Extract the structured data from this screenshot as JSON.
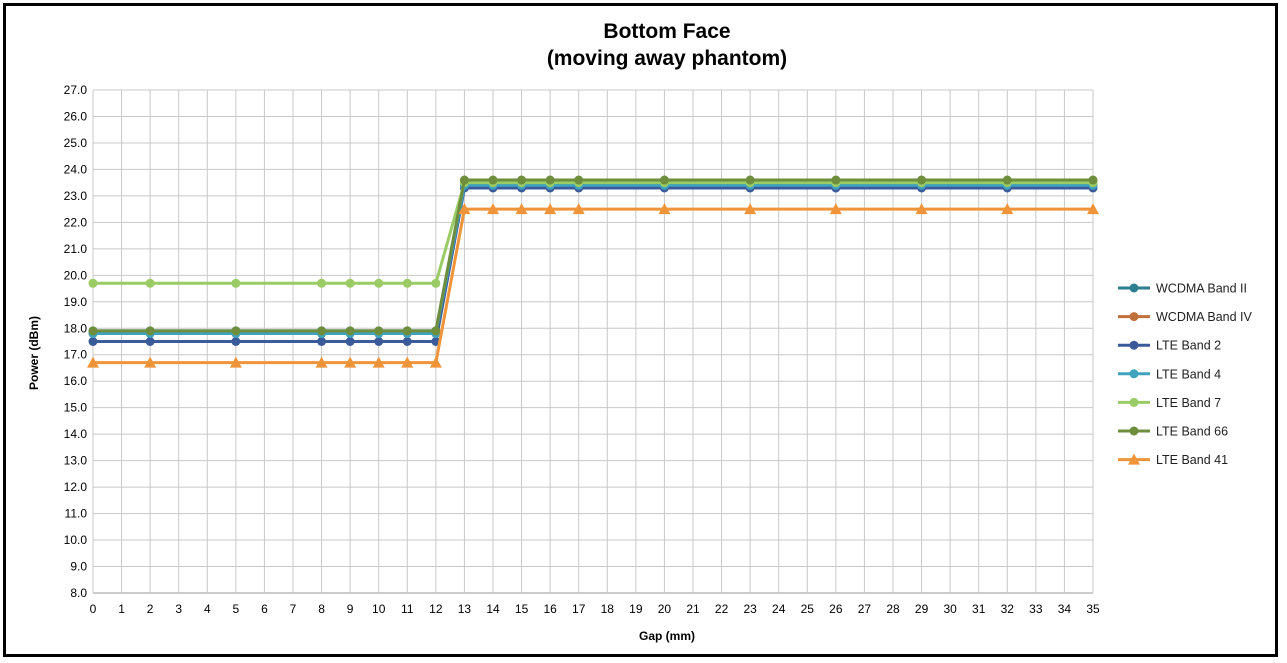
{
  "chart_data": {
    "type": "line",
    "title": "Bottom Face",
    "subtitle": "(moving away phantom)",
    "xlabel": "Gap (mm)",
    "ylabel": "Power (dBm)",
    "x_ticks": [
      0,
      1,
      2,
      3,
      4,
      5,
      6,
      7,
      8,
      9,
      10,
      11,
      12,
      13,
      14,
      15,
      16,
      17,
      18,
      19,
      20,
      21,
      22,
      23,
      24,
      25,
      26,
      27,
      28,
      29,
      30,
      31,
      32,
      33,
      34,
      35
    ],
    "ylim": [
      8.0,
      27.0
    ],
    "y_tick_step": 1.0,
    "grid": true,
    "legend_position": "right",
    "x": [
      0,
      2,
      5,
      8,
      9,
      10,
      11,
      12,
      13,
      14,
      15,
      16,
      17,
      20,
      23,
      26,
      29,
      32,
      35
    ],
    "series": [
      {
        "name": "WCDMA Band II",
        "color": "#2E7F8F",
        "marker": "circle",
        "values": [
          17.9,
          17.9,
          17.9,
          17.9,
          17.9,
          17.9,
          17.9,
          17.9,
          23.4,
          23.4,
          23.4,
          23.4,
          23.4,
          23.4,
          23.4,
          23.4,
          23.4,
          23.4,
          23.4
        ]
      },
      {
        "name": "WCDMA Band IV",
        "color": "#C0703A",
        "marker": "circle",
        "values": [
          17.8,
          17.8,
          17.8,
          17.8,
          17.8,
          17.8,
          17.8,
          17.8,
          23.5,
          23.5,
          23.5,
          23.5,
          23.5,
          23.5,
          23.5,
          23.5,
          23.5,
          23.5,
          23.5
        ]
      },
      {
        "name": "LTE Band 2",
        "color": "#3A5A9A",
        "marker": "circle",
        "values": [
          17.5,
          17.5,
          17.5,
          17.5,
          17.5,
          17.5,
          17.5,
          17.5,
          23.3,
          23.3,
          23.3,
          23.3,
          23.3,
          23.3,
          23.3,
          23.3,
          23.3,
          23.3,
          23.3
        ]
      },
      {
        "name": "LTE Band 4",
        "color": "#3FA3BE",
        "marker": "circle",
        "values": [
          17.8,
          17.8,
          17.8,
          17.8,
          17.8,
          17.8,
          17.8,
          17.8,
          23.4,
          23.4,
          23.4,
          23.4,
          23.4,
          23.4,
          23.4,
          23.4,
          23.4,
          23.4,
          23.4
        ]
      },
      {
        "name": "LTE Band 7",
        "color": "#9BCB65",
        "marker": "circle",
        "values": [
          19.7,
          19.7,
          19.7,
          19.7,
          19.7,
          19.7,
          19.7,
          19.7,
          23.5,
          23.5,
          23.5,
          23.5,
          23.5,
          23.5,
          23.5,
          23.5,
          23.5,
          23.5,
          23.5
        ]
      },
      {
        "name": "LTE Band 66",
        "color": "#6E8E3E",
        "marker": "circle",
        "values": [
          17.9,
          17.9,
          17.9,
          17.9,
          17.9,
          17.9,
          17.9,
          17.9,
          23.6,
          23.6,
          23.6,
          23.6,
          23.6,
          23.6,
          23.6,
          23.6,
          23.6,
          23.6,
          23.6
        ]
      },
      {
        "name": "LTE Band 41",
        "color": "#F0943A",
        "marker": "triangle",
        "values": [
          16.7,
          16.7,
          16.7,
          16.7,
          16.7,
          16.7,
          16.7,
          16.7,
          22.5,
          22.5,
          22.5,
          22.5,
          22.5,
          22.5,
          22.5,
          22.5,
          22.5,
          22.5,
          22.5
        ]
      }
    ]
  }
}
